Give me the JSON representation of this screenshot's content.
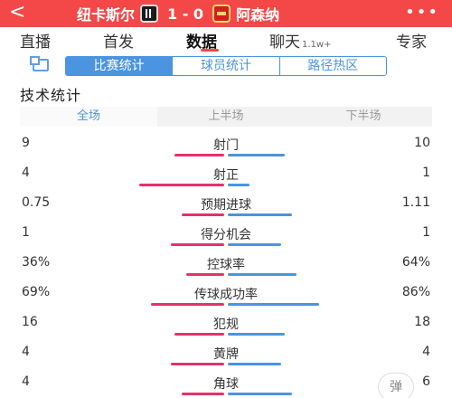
{
  "header": {
    "home_team": "纽卡斯尔",
    "score": "1 - 0",
    "away_team": "阿森纳",
    "more": "•••",
    "back": "<"
  },
  "tabs": [
    {
      "label": "直播",
      "sub": "",
      "active": false
    },
    {
      "label": "首发",
      "sub": "",
      "active": false
    },
    {
      "label": "数据",
      "sub": "",
      "active": true
    },
    {
      "label": "聊天",
      "sub": "1.1w+",
      "active": false
    },
    {
      "label": "专家",
      "sub": "",
      "active": false
    }
  ],
  "subnav": {
    "segments": [
      {
        "label": "比赛统计",
        "active": true
      },
      {
        "label": "球员统计",
        "active": false
      },
      {
        "label": "路径热区",
        "active": false
      }
    ]
  },
  "section_title": "技术统计",
  "period_tabs": [
    {
      "label": "全场",
      "active": true
    },
    {
      "label": "上半场",
      "active": false
    },
    {
      "label": "下半场",
      "active": false
    }
  ],
  "stats": [
    {
      "label": "射门",
      "home": "9",
      "away": "10",
      "home_share": 0.47,
      "away_share": 0.53
    },
    {
      "label": "射正",
      "home": "4",
      "away": "1",
      "home_share": 0.8,
      "away_share": 0.2
    },
    {
      "label": "预期进球",
      "home": "0.75",
      "away": "1.11",
      "home_share": 0.4,
      "away_share": 0.6
    },
    {
      "label": "得分机会",
      "home": "1",
      "away": "1",
      "home_share": 0.5,
      "away_share": 0.5
    },
    {
      "label": "控球率",
      "home": "36%",
      "away": "64%",
      "home_share": 0.36,
      "away_share": 0.64
    },
    {
      "label": "传球成功率",
      "home": "69%",
      "away": "86%",
      "home_share": 0.69,
      "away_share": 0.86
    },
    {
      "label": "犯规",
      "home": "16",
      "away": "18",
      "home_share": 0.47,
      "away_share": 0.53
    },
    {
      "label": "黄牌",
      "home": "4",
      "away": "4",
      "home_share": 0.5,
      "away_share": 0.5
    },
    {
      "label": "角球",
      "home": "4",
      "away": "6",
      "home_share": 0.4,
      "away_share": 0.6
    }
  ],
  "float_button": "弹",
  "colors": {
    "header": "#f44848",
    "home_bar": "#e8306a",
    "away_bar": "#4a94e0",
    "accent": "#4a94e0"
  }
}
